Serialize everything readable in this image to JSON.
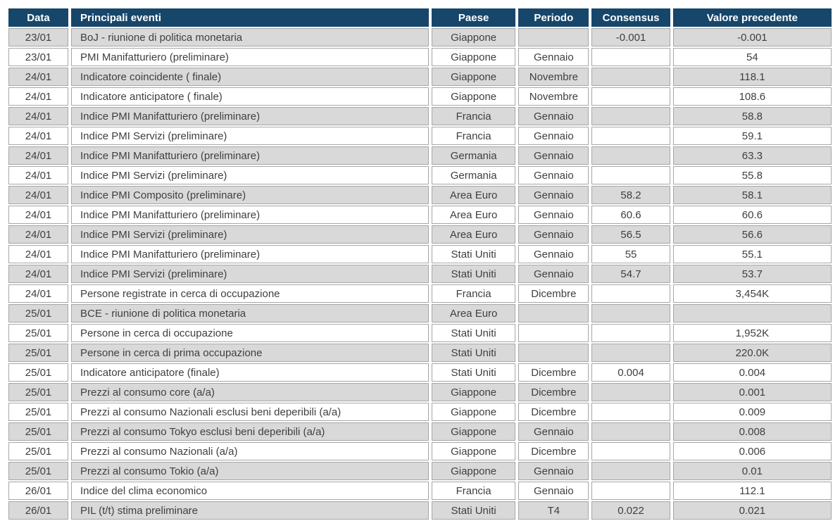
{
  "table": {
    "columns": [
      {
        "key": "data",
        "label": "Data",
        "align": "center"
      },
      {
        "key": "evento",
        "label": "Principali eventi",
        "align": "left"
      },
      {
        "key": "paese",
        "label": "Paese",
        "align": "center"
      },
      {
        "key": "periodo",
        "label": "Periodo",
        "align": "center"
      },
      {
        "key": "consensus",
        "label": "Consensus",
        "align": "center"
      },
      {
        "key": "valore",
        "label": "Valore precedente",
        "align": "center"
      }
    ],
    "rows": [
      [
        "23/01",
        "BoJ - riunione di politica monetaria",
        "Giappone",
        "",
        "-0.001",
        "-0.001"
      ],
      [
        "23/01",
        "PMI Manifatturiero (preliminare)",
        "Giappone",
        "Gennaio",
        "",
        "54"
      ],
      [
        "24/01",
        "Indicatore coincidente ( finale)",
        "Giappone",
        "Novembre",
        "",
        "118.1"
      ],
      [
        "24/01",
        "Indicatore anticipatore ( finale)",
        "Giappone",
        "Novembre",
        "",
        "108.6"
      ],
      [
        "24/01",
        "Indice PMI Manifatturiero (preliminare)",
        "Francia",
        "Gennaio",
        "",
        "58.8"
      ],
      [
        "24/01",
        "Indice PMI Servizi (preliminare)",
        "Francia",
        "Gennaio",
        "",
        "59.1"
      ],
      [
        "24/01",
        "Indice PMI Manifatturiero (preliminare)",
        "Germania",
        "Gennaio",
        "",
        "63.3"
      ],
      [
        "24/01",
        "Indice PMI Servizi (preliminare)",
        "Germania",
        "Gennaio",
        "",
        "55.8"
      ],
      [
        "24/01",
        "Indice PMI Composito (preliminare)",
        "Area Euro",
        "Gennaio",
        "58.2",
        "58.1"
      ],
      [
        "24/01",
        "Indice PMI Manifatturiero (preliminare)",
        "Area Euro",
        "Gennaio",
        "60.6",
        "60.6"
      ],
      [
        "24/01",
        "Indice PMI Servizi (preliminare)",
        "Area Euro",
        "Gennaio",
        "56.5",
        "56.6"
      ],
      [
        "24/01",
        "Indice PMI Manifatturiero (preliminare)",
        "Stati Uniti",
        "Gennaio",
        "55",
        "55.1"
      ],
      [
        "24/01",
        "Indice PMI Servizi (preliminare)",
        "Stati Uniti",
        "Gennaio",
        "54.7",
        "53.7"
      ],
      [
        "24/01",
        "Persone registrate in cerca di occupazione",
        "Francia",
        "Dicembre",
        "",
        "3,454K"
      ],
      [
        "25/01",
        "BCE - riunione di politica monetaria",
        "Area Euro",
        "",
        "",
        ""
      ],
      [
        "25/01",
        "Persone in cerca di occupazione",
        "Stati Uniti",
        "",
        "",
        "1,952K"
      ],
      [
        "25/01",
        "Persone in cerca di prima occupazione",
        "Stati Uniti",
        "",
        "",
        "220.0K"
      ],
      [
        "25/01",
        "Indicatore anticipatore (finale)",
        "Stati Uniti",
        "Dicembre",
        "0.004",
        "0.004"
      ],
      [
        "25/01",
        "Prezzi al consumo core (a/a)",
        "Giappone",
        "Dicembre",
        "",
        "0.001"
      ],
      [
        "25/01",
        "Prezzi al consumo Nazionali esclusi beni deperibili (a/a)",
        "Giappone",
        "Dicembre",
        "",
        "0.009"
      ],
      [
        "25/01",
        "Prezzi al consumo Tokyo esclusi beni deperibili (a/a)",
        "Giappone",
        "Gennaio",
        "",
        "0.008"
      ],
      [
        "25/01",
        "Prezzi al consumo Nazionali (a/a)",
        "Giappone",
        "Dicembre",
        "",
        "0.006"
      ],
      [
        "25/01",
        "Prezzi al consumo Tokio (a/a)",
        "Giappone",
        "Gennaio",
        "",
        "0.01"
      ],
      [
        "26/01",
        "Indice del clima economico",
        "Francia",
        "Gennaio",
        "",
        "112.1"
      ],
      [
        "26/01",
        "PIL (t/t) stima preliminare",
        "Stati Uniti",
        "T4",
        "0.022",
        "0.021"
      ]
    ]
  },
  "colors": {
    "header_bg": "#17466B",
    "header_text": "#FFFFFF",
    "row_alt_bg": "#D9D9D9",
    "row_base_bg": "#FFFFFF",
    "cell_border": "#A6A6A6",
    "body_text": "#3F3F3F"
  }
}
